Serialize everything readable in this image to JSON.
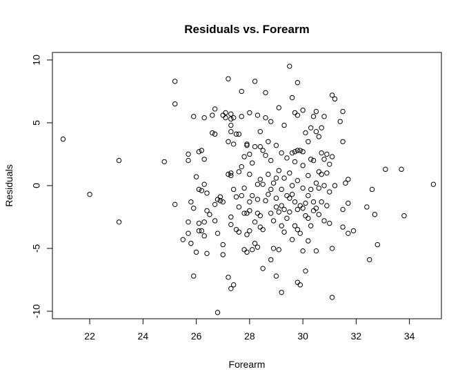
{
  "chart_data": {
    "type": "scatter",
    "title": "Residuals vs. Forearm",
    "xlabel": "Forearm",
    "ylabel": "Residuals",
    "xlim": [
      20.6,
      35.2
    ],
    "ylim": [
      -10.6,
      10.6
    ],
    "xticks": [
      22,
      24,
      26,
      28,
      30,
      32,
      34
    ],
    "yticks": [
      -10,
      -5,
      0,
      5,
      10
    ],
    "grid": false,
    "legend": "none",
    "marker": "open-circle",
    "colors": {
      "points": "#000000",
      "axes": "#000000",
      "background": "#ffffff"
    },
    "points": [
      [
        21.0,
        3.7
      ],
      [
        22.0,
        -0.7
      ],
      [
        23.1,
        2.0
      ],
      [
        23.1,
        -2.9
      ],
      [
        24.8,
        1.9
      ],
      [
        25.2,
        8.3
      ],
      [
        25.2,
        6.5
      ],
      [
        25.2,
        -1.5
      ],
      [
        25.5,
        -4.3
      ],
      [
        25.7,
        2.5
      ],
      [
        25.7,
        2.0
      ],
      [
        25.7,
        -2.9
      ],
      [
        25.7,
        -3.8
      ],
      [
        25.8,
        -1.3
      ],
      [
        25.8,
        -4.6
      ],
      [
        25.9,
        5.5
      ],
      [
        25.9,
        -1.8
      ],
      [
        25.9,
        -7.2
      ],
      [
        26.0,
        0.7
      ],
      [
        26.0,
        -5.3
      ],
      [
        26.1,
        2.7
      ],
      [
        26.1,
        -0.3
      ],
      [
        26.1,
        -3.0
      ],
      [
        26.1,
        -3.6
      ],
      [
        26.2,
        2.8
      ],
      [
        26.2,
        -0.4
      ],
      [
        26.2,
        -3.6
      ],
      [
        26.3,
        5.4
      ],
      [
        26.3,
        2.1
      ],
      [
        26.3,
        0.1
      ],
      [
        26.3,
        -2.9
      ],
      [
        26.3,
        -4.0
      ],
      [
        26.4,
        -0.6
      ],
      [
        26.4,
        -2.0
      ],
      [
        26.4,
        -5.4
      ],
      [
        26.5,
        -2.3
      ],
      [
        26.6,
        5.6
      ],
      [
        26.6,
        4.2
      ],
      [
        26.7,
        6.1
      ],
      [
        26.7,
        4.1
      ],
      [
        26.7,
        -1.5
      ],
      [
        26.7,
        -2.8
      ],
      [
        26.8,
        -1.1
      ],
      [
        26.8,
        -3.8
      ],
      [
        26.8,
        -10.1
      ],
      [
        26.9,
        -0.9
      ],
      [
        26.9,
        -1.2
      ],
      [
        27.0,
        5.6
      ],
      [
        27.0,
        -1.3
      ],
      [
        27.0,
        -4.7
      ],
      [
        27.0,
        -5.5
      ],
      [
        27.1,
        5.8
      ],
      [
        27.1,
        5.4
      ],
      [
        27.2,
        8.5
      ],
      [
        27.2,
        3.5
      ],
      [
        27.2,
        0.9
      ],
      [
        27.2,
        -7.3
      ],
      [
        27.3,
        5.7
      ],
      [
        27.3,
        5.3
      ],
      [
        27.3,
        4.8
      ],
      [
        27.3,
        4.3
      ],
      [
        27.3,
        1.0
      ],
      [
        27.3,
        0.8
      ],
      [
        27.3,
        -2.5
      ],
      [
        27.3,
        -3.1
      ],
      [
        27.3,
        -8.2
      ],
      [
        27.4,
        5.4
      ],
      [
        27.4,
        3.3
      ],
      [
        27.4,
        -0.3
      ],
      [
        27.4,
        -7.9
      ],
      [
        27.5,
        4.1
      ],
      [
        27.5,
        -0.9
      ],
      [
        27.5,
        -3.5
      ],
      [
        27.6,
        4.1
      ],
      [
        27.6,
        1.1
      ],
      [
        27.6,
        -1.7
      ],
      [
        27.6,
        -3.7
      ],
      [
        27.7,
        7.5
      ],
      [
        27.7,
        5.5
      ],
      [
        27.7,
        1.5
      ],
      [
        27.7,
        -0.8
      ],
      [
        27.8,
        2.3
      ],
      [
        27.8,
        -0.2
      ],
      [
        27.8,
        -2.2
      ],
      [
        27.8,
        -5.1
      ],
      [
        27.9,
        3.3
      ],
      [
        27.9,
        3.2
      ],
      [
        27.9,
        -2.2
      ],
      [
        27.9,
        -3.9
      ],
      [
        27.9,
        -5.3
      ],
      [
        28.0,
        5.8
      ],
      [
        28.0,
        2.5
      ],
      [
        28.0,
        0.9
      ],
      [
        28.0,
        -1.3
      ],
      [
        28.0,
        -2.0
      ],
      [
        28.0,
        -3.6
      ],
      [
        28.1,
        1.8
      ],
      [
        28.1,
        -0.8
      ],
      [
        28.1,
        -5.1
      ],
      [
        28.2,
        8.3
      ],
      [
        28.2,
        3.1
      ],
      [
        28.2,
        -2.9
      ],
      [
        28.2,
        -4.6
      ],
      [
        28.3,
        5.6
      ],
      [
        28.3,
        0.1
      ],
      [
        28.3,
        -1.1
      ],
      [
        28.3,
        -2.2
      ],
      [
        28.3,
        -4.9
      ],
      [
        28.4,
        4.3
      ],
      [
        28.4,
        3.1
      ],
      [
        28.4,
        0.5
      ],
      [
        28.4,
        -2.4
      ],
      [
        28.4,
        -3.3
      ],
      [
        28.5,
        2.8
      ],
      [
        28.5,
        0.1
      ],
      [
        28.5,
        -3.5
      ],
      [
        28.5,
        -6.6
      ],
      [
        28.6,
        7.4
      ],
      [
        28.6,
        5.4
      ],
      [
        28.6,
        2.4
      ],
      [
        28.6,
        -1.2
      ],
      [
        28.7,
        3.5
      ],
      [
        28.7,
        0.9
      ],
      [
        28.7,
        -0.7
      ],
      [
        28.8,
        5.1
      ],
      [
        28.8,
        2.0
      ],
      [
        28.8,
        -0.3
      ],
      [
        28.8,
        -2.2
      ],
      [
        28.8,
        -5.9
      ],
      [
        28.9,
        0.2
      ],
      [
        28.9,
        -2.8
      ],
      [
        28.9,
        -5.0
      ],
      [
        29.0,
        3.2
      ],
      [
        29.0,
        0.6
      ],
      [
        29.0,
        -1.0
      ],
      [
        29.0,
        -1.7
      ],
      [
        29.0,
        -7.2
      ],
      [
        29.1,
        6.2
      ],
      [
        29.1,
        1.2
      ],
      [
        29.1,
        -2.1
      ],
      [
        29.1,
        -5.1
      ],
      [
        29.2,
        2.6
      ],
      [
        29.2,
        -0.3
      ],
      [
        29.2,
        -1.6
      ],
      [
        29.2,
        -3.2
      ],
      [
        29.2,
        -8.5
      ],
      [
        29.3,
        4.8
      ],
      [
        29.3,
        0.6
      ],
      [
        29.3,
        -1.9
      ],
      [
        29.3,
        -3.7
      ],
      [
        29.4,
        2.2
      ],
      [
        29.4,
        -0.8
      ],
      [
        29.4,
        -2.6
      ],
      [
        29.5,
        9.5
      ],
      [
        29.5,
        1.0
      ],
      [
        29.5,
        -1.0
      ],
      [
        29.5,
        -2.1
      ],
      [
        29.6,
        7.0
      ],
      [
        29.6,
        2.6
      ],
      [
        29.6,
        0.0
      ],
      [
        29.6,
        -0.7
      ],
      [
        29.6,
        -4.3
      ],
      [
        29.7,
        5.8
      ],
      [
        29.7,
        2.7
      ],
      [
        29.7,
        1.9
      ],
      [
        29.7,
        -1.3
      ],
      [
        29.7,
        -3.2
      ],
      [
        29.8,
        8.2
      ],
      [
        29.8,
        5.6
      ],
      [
        29.8,
        2.8
      ],
      [
        29.8,
        0.4
      ],
      [
        29.8,
        -1.9
      ],
      [
        29.8,
        -3.5
      ],
      [
        29.8,
        -7.7
      ],
      [
        29.9,
        2.8
      ],
      [
        29.9,
        -1.6
      ],
      [
        29.9,
        -3.8
      ],
      [
        29.9,
        -7.9
      ],
      [
        30.0,
        6.0
      ],
      [
        30.0,
        2.7
      ],
      [
        30.0,
        1.6
      ],
      [
        30.0,
        -0.2
      ],
      [
        30.0,
        -1.8
      ],
      [
        30.0,
        -5.2
      ],
      [
        30.1,
        4.2
      ],
      [
        30.1,
        -1.4
      ],
      [
        30.1,
        -2.4
      ],
      [
        30.1,
        -6.8
      ],
      [
        30.2,
        3.5
      ],
      [
        30.2,
        0.8
      ],
      [
        30.2,
        -0.8
      ],
      [
        30.2,
        -2.6
      ],
      [
        30.2,
        -4.4
      ],
      [
        30.3,
        4.6
      ],
      [
        30.3,
        2.1
      ],
      [
        30.3,
        -0.3
      ],
      [
        30.3,
        -3.2
      ],
      [
        30.4,
        5.5
      ],
      [
        30.4,
        2.0
      ],
      [
        30.4,
        -1.3
      ],
      [
        30.4,
        -2.0
      ],
      [
        30.5,
        5.9
      ],
      [
        30.5,
        4.3
      ],
      [
        30.5,
        0.2
      ],
      [
        30.5,
        -1.8
      ],
      [
        30.5,
        -5.2
      ],
      [
        30.6,
        3.9
      ],
      [
        30.6,
        1.1
      ],
      [
        30.6,
        -0.2
      ],
      [
        30.6,
        -2.3
      ],
      [
        30.7,
        4.6
      ],
      [
        30.7,
        2.6
      ],
      [
        30.7,
        0.9
      ],
      [
        30.7,
        -1.3
      ],
      [
        30.8,
        5.5
      ],
      [
        30.8,
        2.1
      ],
      [
        30.8,
        0.0
      ],
      [
        30.8,
        -2.8
      ],
      [
        30.9,
        2.5
      ],
      [
        30.9,
        1.0
      ],
      [
        30.9,
        -1.6
      ],
      [
        31.0,
        1.7
      ],
      [
        31.0,
        -0.5
      ],
      [
        31.0,
        -3.0
      ],
      [
        31.1,
        7.2
      ],
      [
        31.1,
        2.3
      ],
      [
        31.1,
        -5.0
      ],
      [
        31.1,
        -8.9
      ],
      [
        31.2,
        6.9
      ],
      [
        31.2,
        0.0
      ],
      [
        31.4,
        5.1
      ],
      [
        31.5,
        5.9
      ],
      [
        31.5,
        3.5
      ],
      [
        31.5,
        -1.9
      ],
      [
        31.5,
        -3.3
      ],
      [
        31.6,
        0.2
      ],
      [
        31.7,
        0.5
      ],
      [
        31.7,
        -1.4
      ],
      [
        31.7,
        -3.8
      ],
      [
        31.9,
        -3.6
      ],
      [
        32.4,
        -1.7
      ],
      [
        32.5,
        -5.9
      ],
      [
        32.6,
        -0.3
      ],
      [
        32.7,
        -2.3
      ],
      [
        32.8,
        -4.7
      ],
      [
        33.1,
        1.3
      ],
      [
        33.7,
        1.3
      ],
      [
        33.8,
        -2.4
      ],
      [
        34.9,
        0.1
      ]
    ]
  }
}
